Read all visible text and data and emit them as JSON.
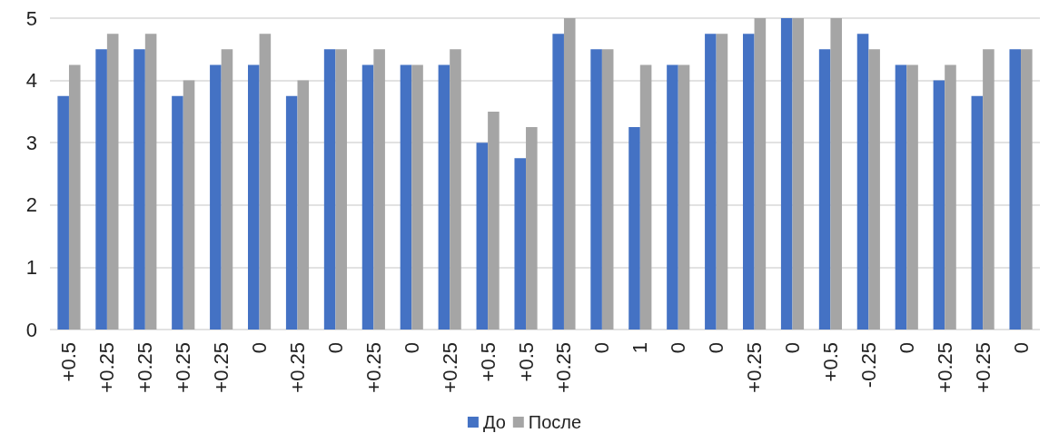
{
  "chart_data": {
    "type": "bar",
    "categories": [
      "+0.5",
      "+0.25",
      "+0.25",
      "+0.25",
      "+0.25",
      "0",
      "+0.25",
      "0",
      "+0.25",
      "0",
      "+0.25",
      "+0.5",
      "+0.5",
      "+0.25",
      "0",
      "1",
      "0",
      "0",
      "+0.25",
      "0",
      "+0.5",
      "-0.25",
      "0",
      "+0.25",
      "+0.25",
      "0"
    ],
    "series": [
      {
        "name": "До",
        "color": "#4472c4",
        "values": [
          3.75,
          4.5,
          4.5,
          3.75,
          4.25,
          4.25,
          3.75,
          4.5,
          4.25,
          4.25,
          4.25,
          3,
          2.75,
          4.75,
          4.5,
          3.25,
          4.25,
          4.75,
          4.75,
          5,
          4.5,
          4.75,
          4.25,
          4,
          3.75,
          4.5
        ]
      },
      {
        "name": "После",
        "color": "#a5a5a5",
        "values": [
          4.25,
          4.75,
          4.75,
          4,
          4.5,
          4.75,
          4,
          4.5,
          4.5,
          4.25,
          4.5,
          3.5,
          3.25,
          5,
          4.5,
          4.25,
          4.25,
          4.75,
          5,
          5,
          5,
          4.5,
          4.25,
          4.25,
          4.5,
          4.5
        ]
      }
    ],
    "ylim": [
      0,
      5
    ],
    "yticks": [
      0,
      1,
      2,
      3,
      4,
      5
    ],
    "grid": "y",
    "legend": "bottom"
  }
}
